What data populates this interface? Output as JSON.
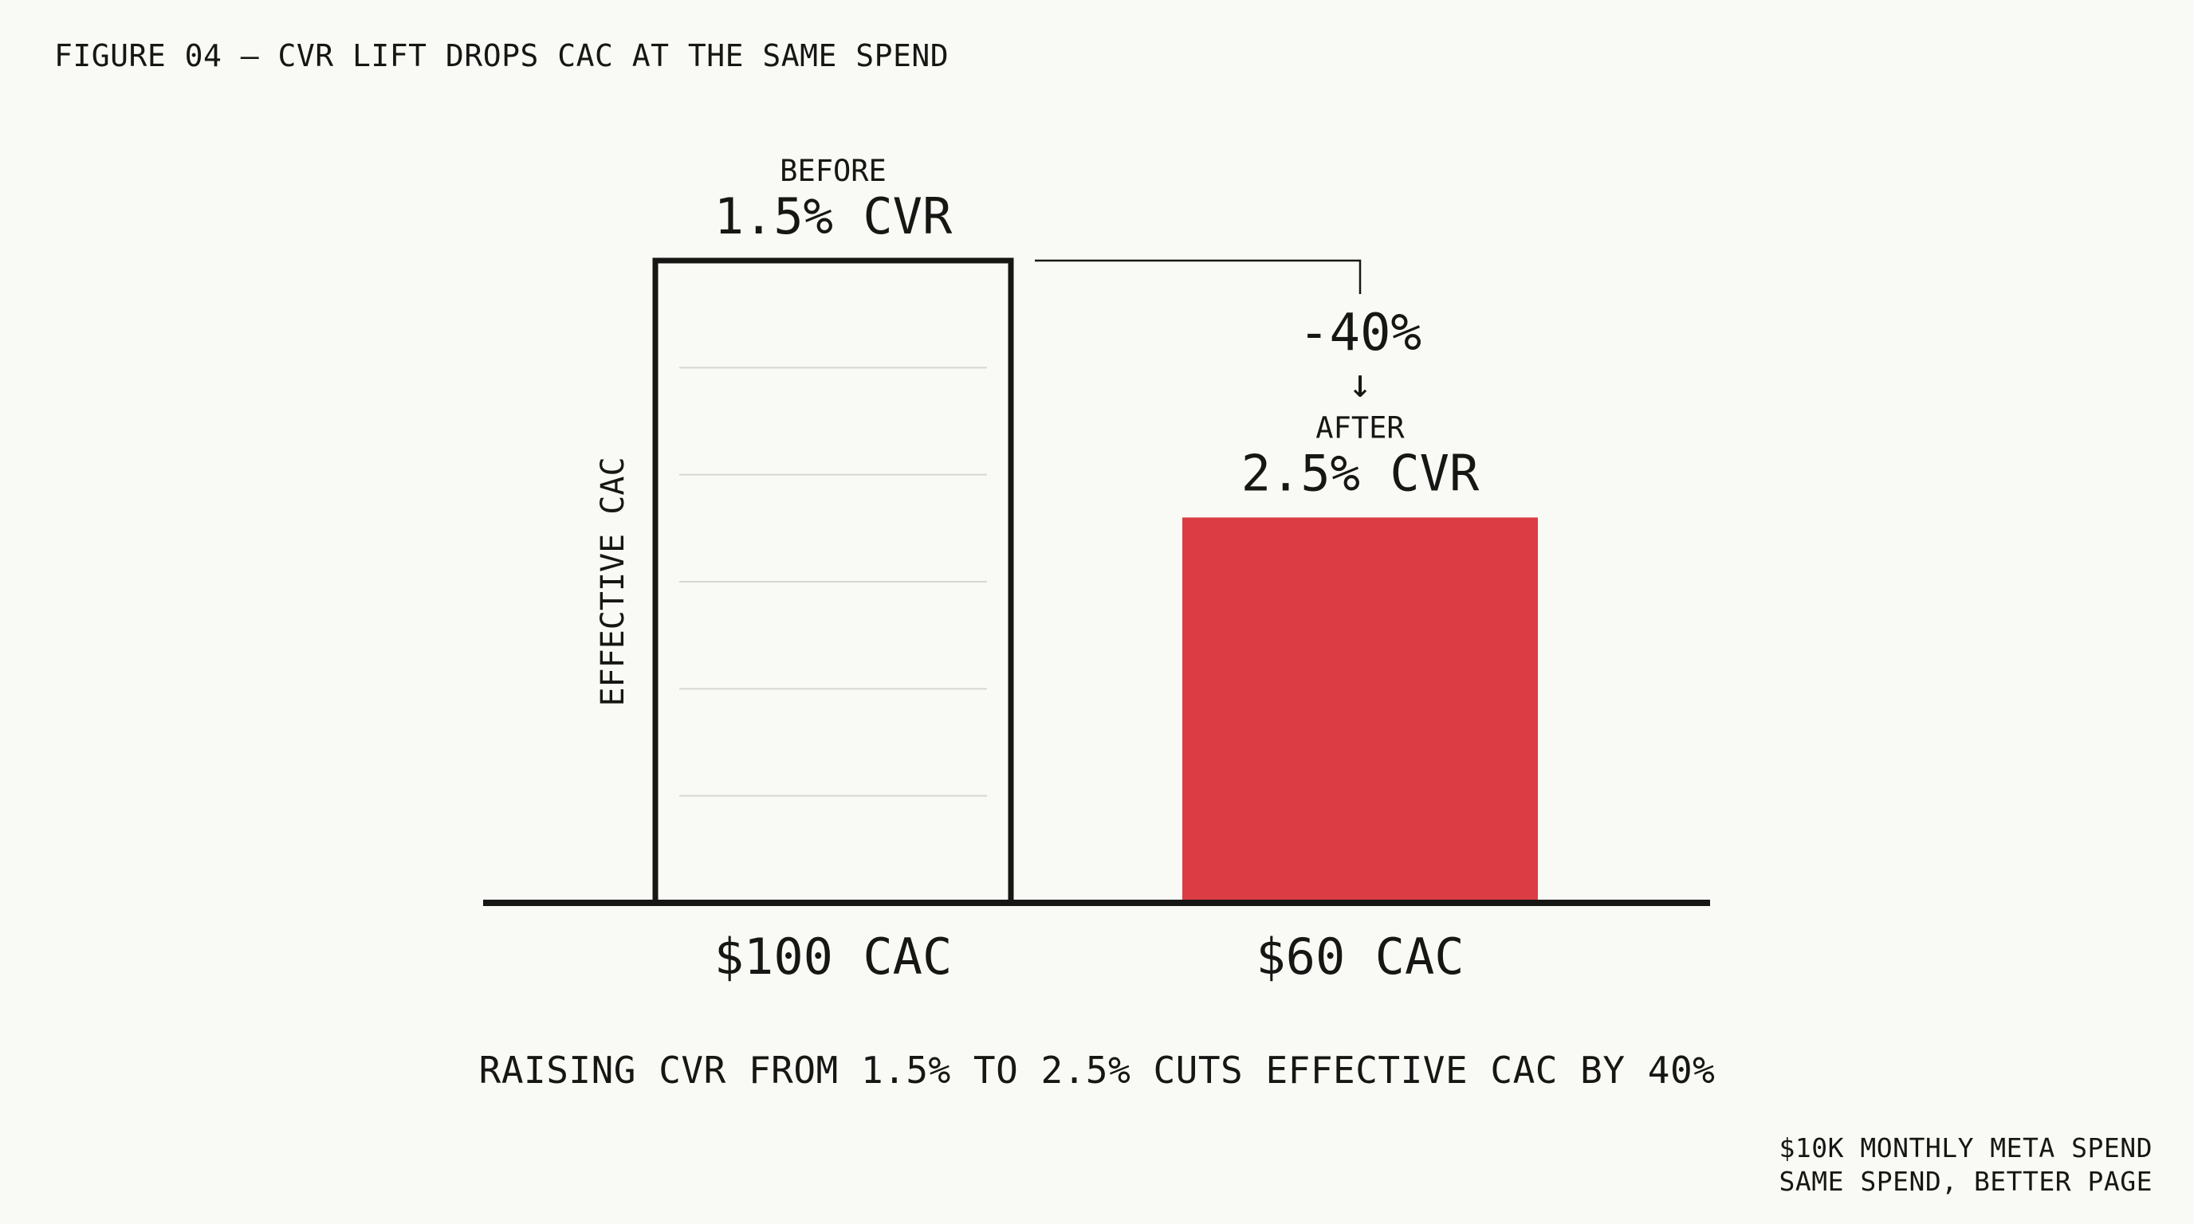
{
  "figure": {
    "title": "FIGURE 04 — CVR LIFT DROPS CAC AT THE SAME SPEND",
    "summary": "RAISING CVR FROM 1.5% TO 2.5% CUTS EFFECTIVE CAC BY 40%",
    "footnote_lines": [
      "$10K MONTHLY META SPEND",
      "SAME SPEND, BETTER PAGE"
    ]
  },
  "chart_data": {
    "type": "bar",
    "title": "FIGURE 04 — CVR LIFT DROPS CAC AT THE SAME SPEND",
    "xlabel": "",
    "ylabel": "EFFECTIVE CAC",
    "ylim": [
      0,
      100
    ],
    "grid": true,
    "legend": "none",
    "categories": [
      "BEFORE",
      "AFTER"
    ],
    "values": [
      100,
      60
    ],
    "bar_labels": [
      "1.5% CVR",
      "2.5% CVR"
    ],
    "tick_labels": [
      "$100 CAC",
      "$60 CAC"
    ],
    "bar_styles": [
      "outline",
      "filled"
    ],
    "annotation": {
      "text": "-40%",
      "arrow": "↓"
    },
    "colors": {
      "ink": "#161614",
      "accent": "#dc3c43",
      "gridline": "#d8d8d2",
      "background": "#f9f9f5"
    }
  }
}
